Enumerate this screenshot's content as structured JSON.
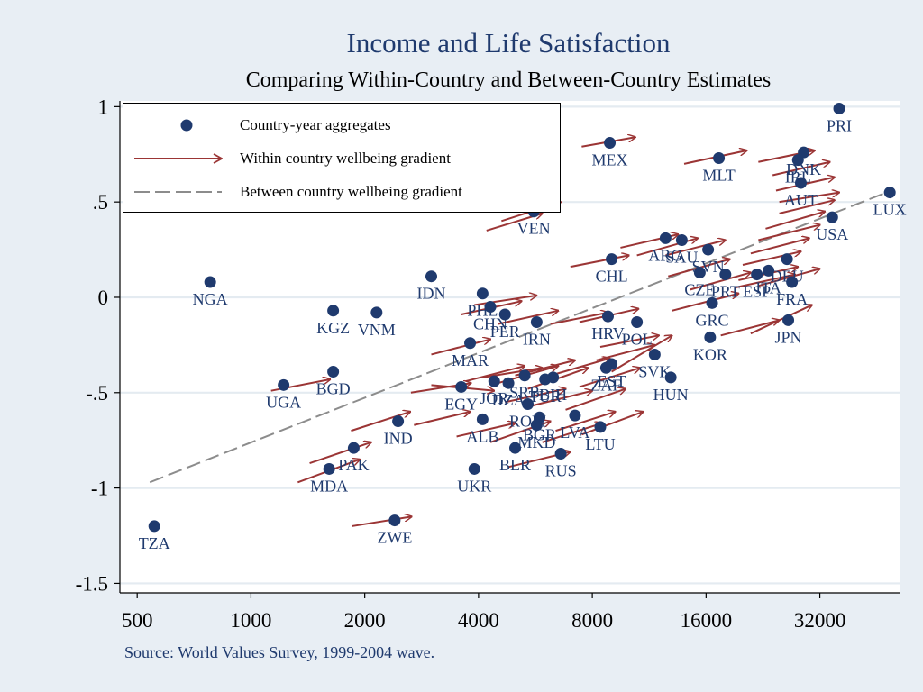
{
  "chart_data": {
    "type": "scatter",
    "title": "Income and Life Satisfaction",
    "subtitle": "Comparing Within-Country and Between-Country Estimates",
    "source": "Source: World Values Survey, 1999-2004 wave.",
    "x_scale": "log2",
    "xlim": [
      450,
      52000
    ],
    "ylim": [
      -1.55,
      1.03
    ],
    "x_ticks": [
      500,
      1000,
      2000,
      4000,
      8000,
      16000,
      32000
    ],
    "x_tick_labels": [
      "500",
      "1000",
      "2000",
      "4000",
      "8000",
      "16000",
      "32000"
    ],
    "y_ticks": [
      1,
      0.5,
      0,
      -0.5,
      -1,
      -1.5
    ],
    "y_tick_labels": [
      "1",
      ".5",
      "0",
      "-.5",
      "-1",
      "-1.5"
    ],
    "grid": true,
    "legend_position": "top-left",
    "legend": [
      {
        "label": "Country-year aggregates",
        "kind": "dot"
      },
      {
        "label": "Within country wellbeing gradient",
        "kind": "arrow"
      },
      {
        "label": "Between country wellbeing gradient",
        "kind": "dashed"
      }
    ],
    "colors": {
      "marker": "#1f3a6e",
      "arrow": "#9b3535",
      "trend": "#8c8c8c",
      "label": "#1f3a6e"
    },
    "trend_line": {
      "x": [
        540,
        48000
      ],
      "y": [
        -0.97,
        0.55
      ]
    },
    "points": [
      {
        "label": "PRI",
        "x": 36000,
        "y": 0.99
      },
      {
        "label": "MEX",
        "x": 8900,
        "y": 0.81
      },
      {
        "label": "MLT",
        "x": 17300,
        "y": 0.73
      },
      {
        "label": "DNK",
        "x": 29000,
        "y": 0.76
      },
      {
        "label": "IRL",
        "x": 28000,
        "y": 0.72
      },
      {
        "label": "AUT",
        "x": 28500,
        "y": 0.6
      },
      {
        "label": "LUX",
        "x": 49000,
        "y": 0.55
      },
      {
        "label": "USA",
        "x": 34500,
        "y": 0.42
      },
      {
        "label": "VEN",
        "x": 5600,
        "y": 0.45
      },
      {
        "label": "CHL",
        "x": 9000,
        "y": 0.2
      },
      {
        "label": "ARG",
        "x": 12500,
        "y": 0.31
      },
      {
        "label": "SAU",
        "x": 13800,
        "y": 0.3
      },
      {
        "label": "SVN",
        "x": 16200,
        "y": 0.25
      },
      {
        "label": "DEU",
        "x": 26200,
        "y": 0.2
      },
      {
        "label": "CZE",
        "x": 15400,
        "y": 0.13
      },
      {
        "label": "PRT",
        "x": 18000,
        "y": 0.12
      },
      {
        "label": "ITA",
        "x": 23400,
        "y": 0.14
      },
      {
        "label": "ESP",
        "x": 21800,
        "y": 0.12
      },
      {
        "label": "FRA",
        "x": 27000,
        "y": 0.08
      },
      {
        "label": "GRC",
        "x": 16600,
        "y": -0.03
      },
      {
        "label": "KOR",
        "x": 16400,
        "y": -0.21
      },
      {
        "label": "JPN",
        "x": 26400,
        "y": -0.12
      },
      {
        "label": "HRV",
        "x": 8800,
        "y": -0.1
      },
      {
        "label": "POL",
        "x": 10500,
        "y": -0.13
      },
      {
        "label": "SVK",
        "x": 11700,
        "y": -0.3
      },
      {
        "label": "HUN",
        "x": 12900,
        "y": -0.42
      },
      {
        "label": "EST",
        "x": 9000,
        "y": -0.35
      },
      {
        "label": "ZAF",
        "x": 8700,
        "y": -0.37
      },
      {
        "label": "NGA",
        "x": 780,
        "y": 0.08
      },
      {
        "label": "KGZ",
        "x": 1650,
        "y": -0.07
      },
      {
        "label": "VNM",
        "x": 2150,
        "y": -0.08
      },
      {
        "label": "IDN",
        "x": 3000,
        "y": 0.11
      },
      {
        "label": "PHL",
        "x": 4100,
        "y": 0.02
      },
      {
        "label": "CHN",
        "x": 4300,
        "y": -0.05
      },
      {
        "label": "PER",
        "x": 4700,
        "y": -0.09
      },
      {
        "label": "IRN",
        "x": 5700,
        "y": -0.13
      },
      {
        "label": "MAR",
        "x": 3800,
        "y": -0.24
      },
      {
        "label": "JOR",
        "x": 4400,
        "y": -0.44
      },
      {
        "label": "DZA",
        "x": 4800,
        "y": -0.45
      },
      {
        "label": "BIH",
        "x": 6300,
        "y": -0.42
      },
      {
        "label": "SRB",
        "x": 5300,
        "y": -0.41
      },
      {
        "label": "TUR",
        "x": 6000,
        "y": -0.43
      },
      {
        "label": "EGY",
        "x": 3600,
        "y": -0.47
      },
      {
        "label": "BGR",
        "x": 5800,
        "y": -0.63
      },
      {
        "label": "ROM",
        "x": 5400,
        "y": -0.56
      },
      {
        "label": "LVA",
        "x": 7200,
        "y": -0.62
      },
      {
        "label": "LTU",
        "x": 8400,
        "y": -0.68
      },
      {
        "label": "MKD",
        "x": 5700,
        "y": -0.67
      },
      {
        "label": "ALB",
        "x": 4100,
        "y": -0.64
      },
      {
        "label": "BLR",
        "x": 5000,
        "y": -0.79
      },
      {
        "label": "RUS",
        "x": 6600,
        "y": -0.82
      },
      {
        "label": "UKR",
        "x": 3900,
        "y": -0.9
      },
      {
        "label": "UGA",
        "x": 1220,
        "y": -0.46
      },
      {
        "label": "BGD",
        "x": 1650,
        "y": -0.39
      },
      {
        "label": "IND",
        "x": 2450,
        "y": -0.65
      },
      {
        "label": "PAK",
        "x": 1870,
        "y": -0.79
      },
      {
        "label": "MDA",
        "x": 1610,
        "y": -0.9
      },
      {
        "label": "TZA",
        "x": 555,
        "y": -1.2
      },
      {
        "label": "ZWE",
        "x": 2400,
        "y": -1.17
      }
    ],
    "arrows": [
      {
        "x1": 7500,
        "y1": 0.79,
        "x2": 10400,
        "y2": 0.84
      },
      {
        "x1": 14000,
        "y1": 0.7,
        "x2": 20500,
        "y2": 0.77
      },
      {
        "x1": 22000,
        "y1": 0.71,
        "x2": 31000,
        "y2": 0.77
      },
      {
        "x1": 24000,
        "y1": 0.64,
        "x2": 34000,
        "y2": 0.71
      },
      {
        "x1": 24500,
        "y1": 0.56,
        "x2": 35000,
        "y2": 0.63
      },
      {
        "x1": 25000,
        "y1": 0.5,
        "x2": 36000,
        "y2": 0.55
      },
      {
        "x1": 25000,
        "y1": 0.44,
        "x2": 35000,
        "y2": 0.51
      },
      {
        "x1": 23000,
        "y1": 0.36,
        "x2": 33000,
        "y2": 0.45
      },
      {
        "x1": 22000,
        "y1": 0.3,
        "x2": 32000,
        "y2": 0.38
      },
      {
        "x1": 21000,
        "y1": 0.23,
        "x2": 30000,
        "y2": 0.31
      },
      {
        "x1": 20000,
        "y1": 0.17,
        "x2": 28500,
        "y2": 0.24
      },
      {
        "x1": 19500,
        "y1": 0.09,
        "x2": 28000,
        "y2": 0.16
      },
      {
        "x1": 19000,
        "y1": 0.05,
        "x2": 27500,
        "y2": 0.12
      },
      {
        "x1": 22000,
        "y1": 0.06,
        "x2": 32000,
        "y2": 0.15
      },
      {
        "x1": 4600,
        "y1": 0.4,
        "x2": 6600,
        "y2": 0.5
      },
      {
        "x1": 7000,
        "y1": 0.16,
        "x2": 10000,
        "y2": 0.22
      },
      {
        "x1": 9500,
        "y1": 0.26,
        "x2": 13500,
        "y2": 0.33
      },
      {
        "x1": 10500,
        "y1": 0.22,
        "x2": 15200,
        "y2": 0.31
      },
      {
        "x1": 12500,
        "y1": 0.22,
        "x2": 18000,
        "y2": 0.3
      },
      {
        "x1": 12700,
        "y1": 0.11,
        "x2": 18500,
        "y2": 0.2
      },
      {
        "x1": 14500,
        "y1": 0.04,
        "x2": 21000,
        "y2": 0.13
      },
      {
        "x1": 13000,
        "y1": -0.07,
        "x2": 19500,
        "y2": 0.02
      },
      {
        "x1": 17500,
        "y1": -0.2,
        "x2": 25000,
        "y2": -0.12
      },
      {
        "x1": 21000,
        "y1": -0.19,
        "x2": 30500,
        "y2": -0.04
      },
      {
        "x1": 3600,
        "y1": -0.09,
        "x2": 5200,
        "y2": -0.02
      },
      {
        "x1": 3900,
        "y1": -0.04,
        "x2": 5700,
        "y2": 0.01
      },
      {
        "x1": 4500,
        "y1": -0.14,
        "x2": 6500,
        "y2": -0.07
      },
      {
        "x1": 6200,
        "y1": -0.14,
        "x2": 8800,
        "y2": -0.08
      },
      {
        "x1": 7400,
        "y1": -0.13,
        "x2": 10600,
        "y2": -0.06
      },
      {
        "x1": 8400,
        "y1": -0.26,
        "x2": 12000,
        "y2": -0.2
      },
      {
        "x1": 8200,
        "y1": -0.33,
        "x2": 11700,
        "y2": -0.25
      },
      {
        "x1": 9000,
        "y1": -0.39,
        "x2": 13000,
        "y2": -0.2
      },
      {
        "x1": 3000,
        "y1": -0.3,
        "x2": 4300,
        "y2": -0.22
      },
      {
        "x1": 3000,
        "y1": -0.46,
        "x2": 4400,
        "y2": -0.49
      },
      {
        "x1": 3700,
        "y1": -0.44,
        "x2": 5300,
        "y2": -0.36
      },
      {
        "x1": 4100,
        "y1": -0.42,
        "x2": 5900,
        "y2": -0.37
      },
      {
        "x1": 4500,
        "y1": -0.45,
        "x2": 6500,
        "y2": -0.36
      },
      {
        "x1": 5000,
        "y1": -0.41,
        "x2": 7200,
        "y2": -0.33
      },
      {
        "x1": 5400,
        "y1": -0.48,
        "x2": 7800,
        "y2": -0.37
      },
      {
        "x1": 6200,
        "y1": -0.41,
        "x2": 8900,
        "y2": -0.32
      },
      {
        "x1": 4700,
        "y1": -0.55,
        "x2": 6800,
        "y2": -0.48
      },
      {
        "x1": 5500,
        "y1": -0.57,
        "x2": 8000,
        "y2": -0.49
      },
      {
        "x1": 6800,
        "y1": -0.59,
        "x2": 9800,
        "y2": -0.48
      },
      {
        "x1": 7400,
        "y1": -0.47,
        "x2": 10700,
        "y2": -0.37
      },
      {
        "x1": 3500,
        "y1": -0.73,
        "x2": 5000,
        "y2": -0.66
      },
      {
        "x1": 4300,
        "y1": -0.76,
        "x2": 6200,
        "y2": -0.65
      },
      {
        "x1": 5900,
        "y1": -0.76,
        "x2": 8500,
        "y2": -0.66
      },
      {
        "x1": 6400,
        "y1": -0.7,
        "x2": 9200,
        "y2": -0.6
      },
      {
        "x1": 4800,
        "y1": -0.89,
        "x2": 7000,
        "y2": -0.81
      },
      {
        "x1": 7500,
        "y1": -0.72,
        "x2": 10900,
        "y2": -0.6
      },
      {
        "x1": 1130,
        "y1": -0.49,
        "x2": 1620,
        "y2": -0.43
      },
      {
        "x1": 1840,
        "y1": -0.7,
        "x2": 2640,
        "y2": -0.6
      },
      {
        "x1": 2700,
        "y1": -0.67,
        "x2": 3800,
        "y2": -0.6
      },
      {
        "x1": 1330,
        "y1": -0.97,
        "x2": 1940,
        "y2": -0.85
      },
      {
        "x1": 1430,
        "y1": -0.87,
        "x2": 2080,
        "y2": -0.76
      },
      {
        "x1": 1850,
        "y1": -1.2,
        "x2": 2660,
        "y2": -1.15
      },
      {
        "x1": 2650,
        "y1": -0.5,
        "x2": 3820,
        "y2": -0.45
      },
      {
        "x1": 4200,
        "y1": 0.35,
        "x2": 5900,
        "y2": 0.44
      }
    ]
  }
}
